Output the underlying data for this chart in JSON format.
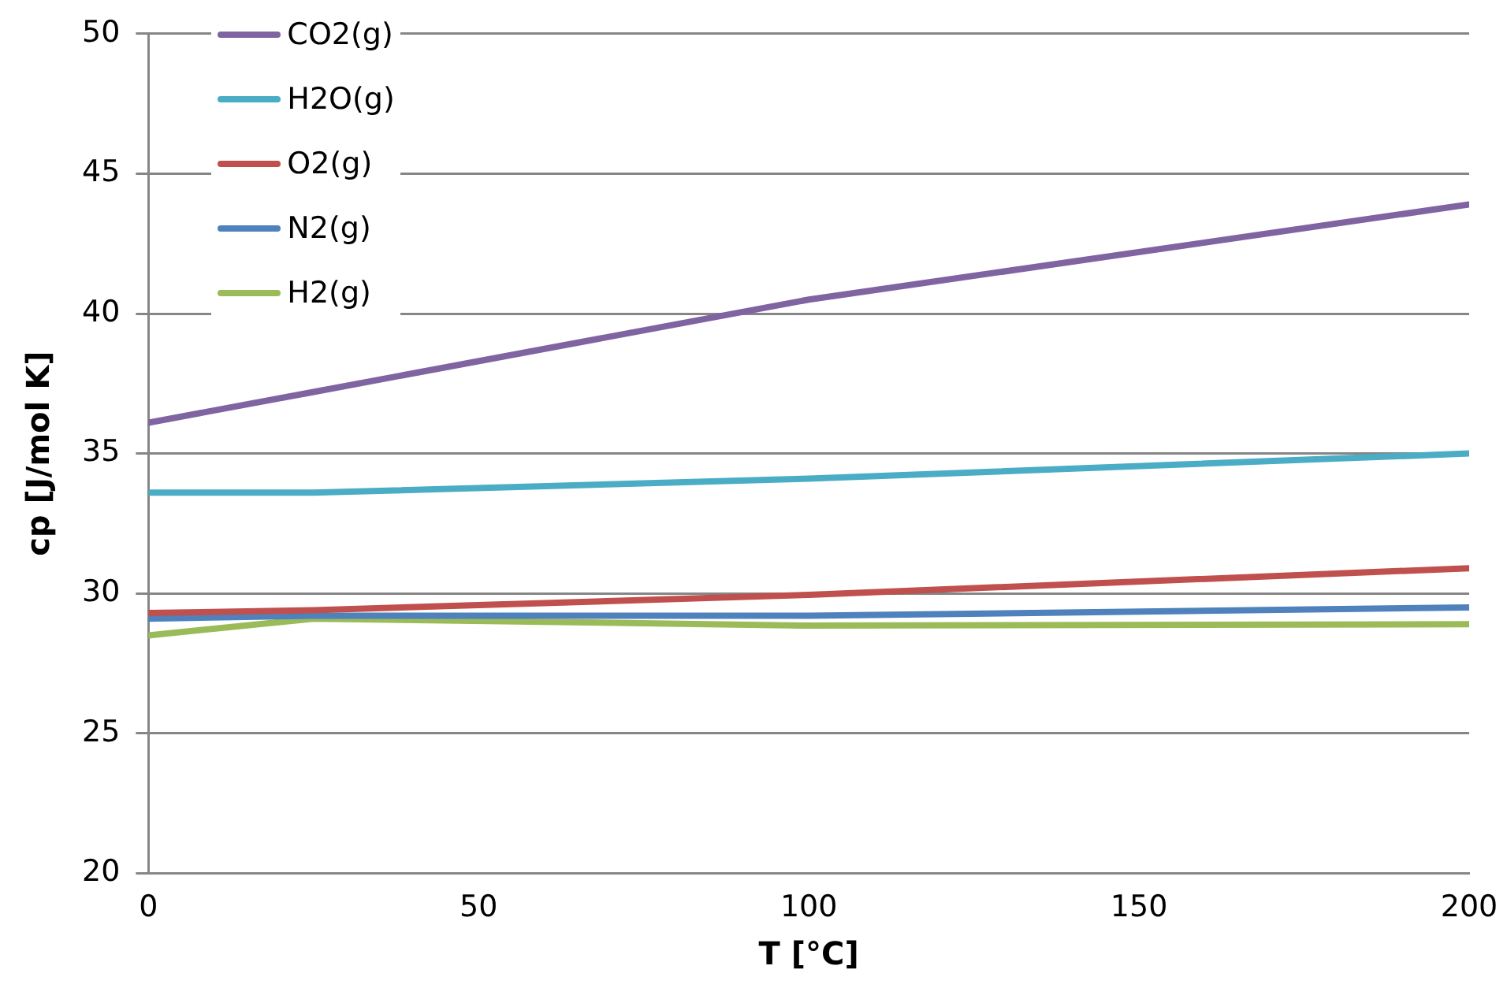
{
  "chart_data": {
    "type": "line",
    "xlabel": "T [°C]",
    "ylabel": "cp [J/mol K]",
    "x": [
      0,
      25,
      100,
      200
    ],
    "series": [
      {
        "name": "CO2(g)",
        "color": "#8064a2",
        "values": [
          36.1,
          37.2,
          40.5,
          43.9
        ]
      },
      {
        "name": "H2O(g)",
        "color": "#4bacc6",
        "values": [
          33.6,
          33.6,
          34.1,
          35.0
        ]
      },
      {
        "name": "O2(g)",
        "color": "#c0504d",
        "values": [
          29.3,
          29.4,
          29.95,
          30.9
        ]
      },
      {
        "name": "N2(g)",
        "color": "#4f81bd",
        "values": [
          29.1,
          29.2,
          29.2,
          29.5
        ]
      },
      {
        "name": "H2(g)",
        "color": "#9bbb59",
        "values": [
          28.5,
          29.1,
          28.85,
          28.9
        ]
      }
    ],
    "xlim": [
      0,
      200
    ],
    "xticks": [
      0,
      50,
      100,
      150,
      200
    ],
    "ylim": [
      20,
      50
    ],
    "yticks": [
      20,
      25,
      30,
      35,
      40,
      45,
      50
    ],
    "grid": "y",
    "legend": "top left",
    "marker": "none",
    "line_style": "solid"
  }
}
